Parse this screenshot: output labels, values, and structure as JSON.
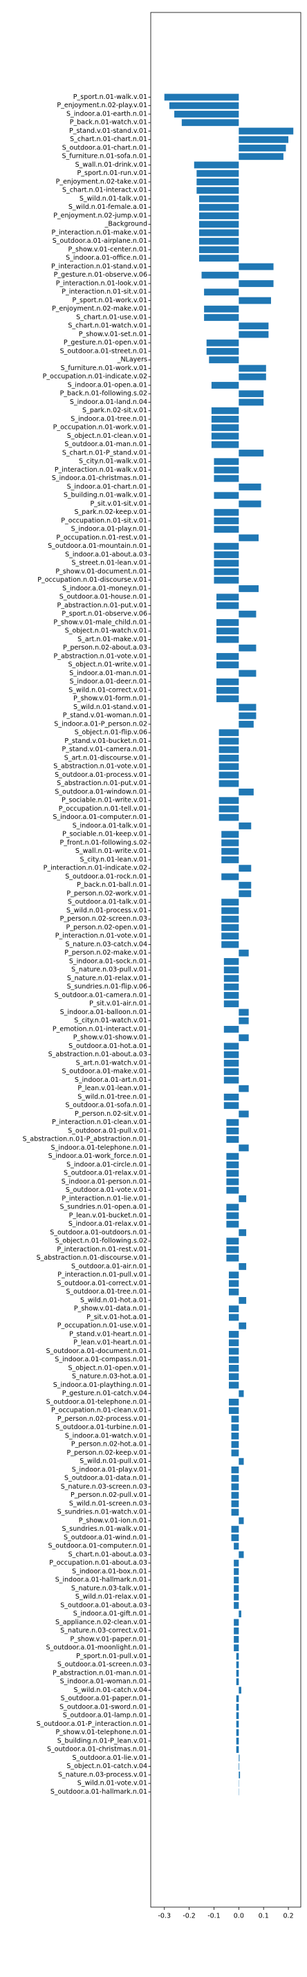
{
  "chart_data": {
    "type": "barh",
    "color": "#1f77b4",
    "categories": [
      "P_sport.n.01-walk.v.01",
      "P_enjoyment.n.02-play.v.01",
      "S_indoor.a.01-earth.n.01",
      "P_back.n.01-watch.v.01",
      "P_stand.v.01-stand.v.01",
      "S_chart.n.01-chart.n.01",
      "S_outdoor.a.01-chart.n.01",
      "S_furniture.n.01-sofa.n.01",
      "S_wall.n.01-drink.v.01",
      "P_sport.n.01-run.v.01",
      "P_enjoyment.n.02-take.v.01",
      "S_chart.n.01-interact.v.01",
      "S_wild.n.01-talk.v.01",
      "S_wild.n.01-female.a.01",
      "P_enjoyment.n.02-jump.v.01",
      "_Background",
      "P_interaction.n.01-make.v.01",
      "S_outdoor.a.01-airplane.n.01",
      "P_show.v.01-center.n.01",
      "S_indoor.a.01-office.n.01",
      "P_interaction.n.01-stand.v.01",
      "P_gesture.n.01-observe.v.06",
      "P_interaction.n.01-look.v.01",
      "P_interaction.n.01-sit.v.01",
      "P_sport.n.01-work.v.01",
      "P_enjoyment.n.02-make.v.01",
      "S_chart.n.01-use.v.01",
      "S_chart.n.01-watch.v.01",
      "P_show.v.01-set.n.01",
      "P_gesture.n.01-open.v.01",
      "S_outdoor.a.01-street.n.01",
      "_NLayers",
      "S_furniture.n.01-work.v.01",
      "P_occupation.n.01-indicate.v.02",
      "S_indoor.a.01-open.a.01",
      "P_back.n.01-following.s.02",
      "S_indoor.a.01-land.n.04",
      "S_park.n.02-sit.v.01",
      "S_indoor.a.01-tree.n.01",
      "P_occupation.n.01-work.v.01",
      "S_object.n.01-clean.v.01",
      "S_outdoor.a.01-man.n.01",
      "S_chart.n.01-P_stand.v.01",
      "S_city.n.01-walk.v.01",
      "P_interaction.n.01-walk.v.01",
      "S_indoor.a.01-christmas.n.01",
      "S_indoor.a.01-chart.n.01",
      "S_building.n.01-walk.v.01",
      "P_sit.v.01-sit.v.01",
      "S_park.n.02-keep.v.01",
      "P_occupation.n.01-sit.v.01",
      "S_indoor.a.01-play.n.01",
      "P_occupation.n.01-rest.v.01",
      "S_outdoor.a.01-mountain.n.01",
      "S_indoor.a.01-about.a.03",
      "S_street.n.01-lean.v.01",
      "P_show.v.01-document.n.01",
      "P_occupation.n.01-discourse.v.01",
      "S_indoor.a.01-money.n.01",
      "S_outdoor.a.01-house.n.01",
      "P_abstraction.n.01-put.v.01",
      "P_sport.n.01-observe.v.06",
      "P_show.v.01-male_child.n.01",
      "S_object.n.01-watch.v.01",
      "S_art.n.01-make.v.01",
      "P_person.n.02-about.a.03",
      "P_abstraction.n.01-vote.v.01",
      "S_object.n.01-write.v.01",
      "S_indoor.a.01-man.n.01",
      "S_indoor.a.01-deer.n.01",
      "S_wild.n.01-correct.v.01",
      "P_show.v.01-form.n.01",
      "S_wild.n.01-stand.v.01",
      "P_stand.v.01-woman.n.01",
      "S_indoor.a.01-P_person.n.02",
      "S_object.n.01-flip.v.06",
      "P_stand.v.01-bucket.n.01",
      "P_stand.v.01-camera.n.01",
      "S_art.n.01-discourse.v.01",
      "S_abstraction.n.01-vote.v.01",
      "S_outdoor.a.01-process.v.01",
      "S_abstraction.n.01-put.v.01",
      "S_outdoor.a.01-window.n.01",
      "P_sociable.n.01-write.v.01",
      "P_occupation.n.01-tell.v.01",
      "S_indoor.a.01-computer.n.01",
      "S_indoor.a.01-talk.v.01",
      "P_sociable.n.01-keep.v.01",
      "P_front.n.01-following.s.02",
      "S_wall.n.01-write.v.01",
      "S_city.n.01-lean.v.01",
      "P_interaction.n.01-indicate.v.02",
      "S_outdoor.a.01-rock.n.01",
      "P_back.n.01-ball.n.01",
      "P_person.n.02-work.v.01",
      "S_outdoor.a.01-talk.v.01",
      "S_wild.n.01-process.v.01",
      "P_person.n.02-screen.n.03",
      "P_person.n.02-open.v.01",
      "P_interaction.n.01-vote.v.01",
      "S_nature.n.03-catch.v.04",
      "P_person.n.02-make.v.01",
      "S_indoor.a.01-sock.n.01",
      "S_nature.n.03-pull.v.01",
      "S_nature.n.01-relax.v.01",
      "S_sundries.n.01-flip.v.06",
      "S_outdoor.a.01-camera.n.01",
      "P_sit.v.01-air.n.01",
      "S_indoor.a.01-balloon.n.01",
      "S_city.n.01-watch.v.01",
      "P_emotion.n.01-interact.v.01",
      "P_show.v.01-show.v.01",
      "S_outdoor.a.01-hot.a.01",
      "S_abstraction.n.01-about.a.03",
      "S_art.n.01-watch.v.01",
      "S_outdoor.a.01-make.v.01",
      "S_indoor.a.01-art.n.01",
      "P_lean.v.01-lean.v.01",
      "S_wild.n.01-tree.n.01",
      "S_outdoor.a.01-sofa.n.01",
      "P_person.n.02-sit.v.01",
      "P_interaction.n.01-clean.v.01",
      "S_outdoor.a.01-pull.v.01",
      "S_abstraction.n.01-P_abstraction.n.01",
      "S_indoor.a.01-telephone.n.01",
      "S_indoor.a.01-work_force.n.01",
      "S_indoor.a.01-circle.n.01",
      "S_outdoor.a.01-relax.v.01",
      "S_indoor.a.01-person.n.01",
      "S_outdoor.a.01-vote.v.01",
      "P_interaction.n.01-lie.v.01",
      "S_sundries.n.01-open.a.01",
      "P_lean.v.01-bucket.n.01",
      "S_indoor.a.01-relax.v.01",
      "S_outdoor.a.01-outdoors.n.01",
      "S_object.n.01-following.s.02",
      "P_interaction.n.01-rest.v.01",
      "S_abstraction.n.01-discourse.v.01",
      "S_outdoor.a.01-air.n.01",
      "P_interaction.n.01-pull.v.01",
      "S_outdoor.a.01-correct.v.01",
      "S_outdoor.a.01-tree.n.01",
      "S_wild.n.01-hot.a.01",
      "P_show.v.01-data.n.01",
      "P_sit.v.01-hot.a.01",
      "P_occupation.n.01-use.v.01",
      "P_stand.v.01-heart.n.01",
      "P_lean.v.01-heart.n.01",
      "S_outdoor.a.01-document.n.01",
      "S_indoor.a.01-compass.n.01",
      "S_object.n.01-open.v.01",
      "S_nature.n.03-hot.a.01",
      "S_indoor.a.01-plaything.n.01",
      "P_gesture.n.01-catch.v.04",
      "S_outdoor.a.01-telephone.n.01",
      "P_occupation.n.01-clean.v.01",
      "P_person.n.02-process.v.01",
      "S_outdoor.a.01-turbine.n.01",
      "S_indoor.a.01-watch.v.01",
      "P_person.n.02-hot.a.01",
      "P_person.n.02-keep.v.01",
      "S_wild.n.01-pull.v.01",
      "S_indoor.a.01-play.v.01",
      "S_outdoor.a.01-data.n.01",
      "S_nature.n.03-screen.n.03",
      "P_person.n.02-pull.v.01",
      "S_wild.n.01-screen.n.03",
      "S_sundries.n.01-watch.v.01",
      "P_show.v.01-ion.n.01",
      "S_sundries.n.01-walk.v.01",
      "S_outdoor.a.01-wind.n.01",
      "S_outdoor.a.01-computer.n.01",
      "S_chart.n.01-about.a.03",
      "P_occupation.n.01-about.a.03",
      "S_indoor.a.01-box.n.01",
      "S_indoor.a.01-hallmark.n.01",
      "S_nature.n.03-talk.v.01",
      "S_wild.n.01-relax.v.01",
      "S_outdoor.a.01-about.a.03",
      "S_indoor.a.01-gift.n.01",
      "S_appliance.n.02-clean.v.01",
      "S_nature.n.03-correct.v.01",
      "P_show.v.01-paper.n.01",
      "S_outdoor.a.01-moonlight.n.01",
      "P_sport.n.01-pull.v.01",
      "S_outdoor.a.01-screen.n.03",
      "P_abstraction.n.01-man.n.01",
      "S_indoor.a.01-woman.n.01",
      "S_wild.n.01-catch.v.04",
      "S_outdoor.a.01-paper.n.01",
      "S_outdoor.a.01-sword.n.01",
      "S_outdoor.a.01-lamp.n.01",
      "S_outdoor.a.01-P_interaction.n.01",
      "P_show.v.01-telephone.n.01",
      "S_building.n.01-P_lean.v.01",
      "S_outdoor.a.01-christmas.n.01",
      "S_outdoor.a.01-lie.v.01",
      "S_object.n.01-catch.v.04",
      "S_nature.n.03-process.v.01",
      "S_wild.n.01-vote.v.01",
      "S_outdoor.a.01-hallmark.n.01"
    ],
    "values": [
      -0.3,
      -0.28,
      -0.26,
      -0.23,
      0.22,
      0.2,
      0.19,
      0.18,
      -0.18,
      -0.17,
      -0.17,
      -0.17,
      -0.16,
      -0.16,
      -0.16,
      -0.16,
      -0.16,
      -0.16,
      -0.16,
      -0.16,
      0.14,
      -0.15,
      0.14,
      -0.14,
      0.13,
      -0.14,
      -0.14,
      0.12,
      0.12,
      -0.13,
      -0.13,
      -0.12,
      0.11,
      0.11,
      -0.11,
      0.1,
      0.1,
      -0.11,
      -0.11,
      -0.11,
      -0.11,
      -0.11,
      0.1,
      -0.1,
      -0.1,
      -0.1,
      0.09,
      -0.1,
      0.09,
      -0.1,
      -0.1,
      -0.1,
      0.08,
      -0.1,
      -0.1,
      -0.1,
      -0.1,
      -0.1,
      0.08,
      -0.09,
      -0.09,
      0.07,
      -0.09,
      -0.09,
      -0.09,
      0.07,
      -0.09,
      -0.09,
      0.07,
      -0.09,
      -0.09,
      -0.09,
      0.07,
      0.07,
      0.06,
      -0.08,
      -0.08,
      -0.08,
      -0.08,
      -0.08,
      -0.08,
      -0.08,
      0.06,
      -0.08,
      -0.08,
      -0.08,
      0.05,
      -0.07,
      -0.07,
      -0.07,
      -0.07,
      0.05,
      -0.07,
      0.05,
      0.05,
      -0.07,
      -0.07,
      -0.07,
      -0.07,
      -0.07,
      -0.07,
      0.04,
      -0.06,
      -0.06,
      -0.06,
      -0.06,
      -0.06,
      -0.06,
      0.04,
      0.04,
      -0.06,
      0.04,
      -0.06,
      -0.06,
      -0.06,
      -0.06,
      -0.06,
      0.04,
      -0.06,
      -0.06,
      0.04,
      -0.05,
      -0.05,
      -0.05,
      0.04,
      -0.05,
      -0.05,
      -0.05,
      -0.05,
      -0.05,
      0.03,
      -0.05,
      -0.05,
      -0.05,
      0.03,
      -0.05,
      -0.05,
      -0.05,
      0.03,
      -0.04,
      -0.04,
      -0.04,
      0.03,
      -0.04,
      -0.04,
      0.03,
      -0.04,
      -0.04,
      -0.04,
      -0.04,
      -0.04,
      -0.04,
      -0.04,
      0.02,
      -0.04,
      -0.04,
      -0.03,
      -0.03,
      -0.03,
      -0.03,
      -0.03,
      0.02,
      -0.03,
      -0.03,
      -0.03,
      -0.03,
      -0.03,
      -0.03,
      0.02,
      -0.03,
      -0.03,
      -0.02,
      0.02,
      -0.02,
      -0.02,
      -0.02,
      -0.02,
      -0.02,
      -0.02,
      0.01,
      -0.02,
      -0.02,
      -0.02,
      -0.02,
      -0.01,
      -0.01,
      -0.01,
      -0.01,
      0.01,
      -0.01,
      -0.01,
      -0.01,
      -0.01,
      -0.01,
      -0.01,
      -0.01,
      0.003,
      0.002,
      0.005,
      0.001,
      0.001
    ],
    "xlim": [
      -0.355,
      0.25
    ],
    "xticks": [
      -0.3,
      -0.2,
      -0.1,
      {
        "value": 0,
        "label": "0.0"
      },
      0.1,
      0.2
    ]
  }
}
